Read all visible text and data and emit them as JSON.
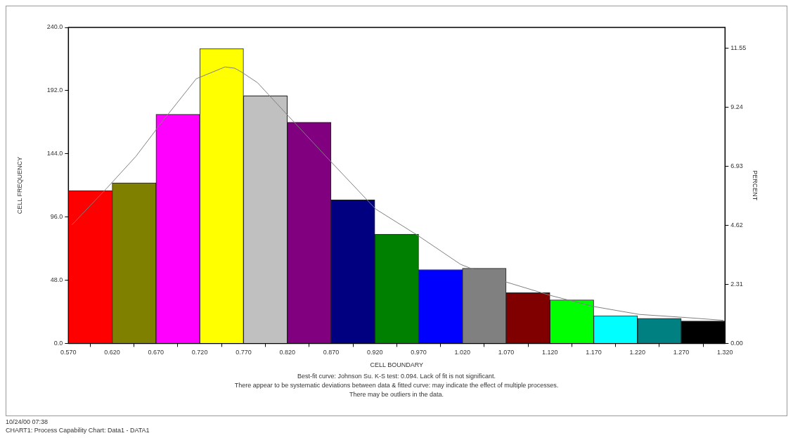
{
  "chart_data": {
    "type": "histogram",
    "xlabel": "CELL BOUNDARY",
    "ylabel": "CELL FREQUENCY",
    "y2label": "PERCENT",
    "bins": [
      0.57,
      0.62,
      0.67,
      0.72,
      0.77,
      0.82,
      0.87,
      0.92,
      0.97,
      1.02,
      1.07,
      1.12,
      1.17,
      1.22,
      1.27,
      1.32
    ],
    "values": [
      116,
      122,
      174,
      224,
      188,
      168,
      109,
      83,
      56,
      57,
      38.5,
      33,
      21,
      19,
      17
    ],
    "colors": [
      "#ff0000",
      "#808000",
      "#ff00ff",
      "#ffff00",
      "#c0c0c0",
      "#800080",
      "#000080",
      "#008000",
      "#0000ff",
      "#808080",
      "#800000",
      "#00ff00",
      "#00ffff",
      "#008080",
      "#000000"
    ],
    "series": [
      {
        "type": "line",
        "color": "#808080",
        "marker": "none",
        "x": [
          0.574,
          0.614,
          0.647,
          0.679,
          0.716,
          0.749,
          0.76,
          0.768,
          0.786,
          0.818,
          0.867,
          0.921,
          0.969,
          1.018,
          1.068,
          1.12,
          1.17,
          1.222,
          1.278,
          1.318
        ],
        "values": [
          90,
          118,
          142,
          170,
          201,
          210,
          209,
          206,
          198,
          175,
          140,
          102,
          82,
          60,
          47,
          36.5,
          28,
          22,
          19.5,
          17.5
        ]
      }
    ],
    "xlim": [
      0.57,
      1.32
    ],
    "xticks": [
      {
        "value": 0.57,
        "label": "0.570"
      },
      {
        "value": 0.62,
        "label": "0.620"
      },
      {
        "value": 0.67,
        "label": "0.670"
      },
      {
        "value": 0.72,
        "label": "0.720"
      },
      {
        "value": 0.77,
        "label": "0.770"
      },
      {
        "value": 0.82,
        "label": "0.820"
      },
      {
        "value": 0.87,
        "label": "0.870"
      },
      {
        "value": 0.92,
        "label": "0.920"
      },
      {
        "value": 0.97,
        "label": "0.970"
      },
      {
        "value": 1.02,
        "label": "1.020"
      },
      {
        "value": 1.07,
        "label": "1.070"
      },
      {
        "value": 1.12,
        "label": "1.120"
      },
      {
        "value": 1.17,
        "label": "1.170"
      },
      {
        "value": 1.22,
        "label": "1.220"
      },
      {
        "value": 1.27,
        "label": "1.270"
      },
      {
        "value": 1.32,
        "label": "1.320"
      }
    ],
    "ylim": [
      0,
      240
    ],
    "yticks": [
      {
        "value": 0,
        "label": "0.0"
      },
      {
        "value": 48,
        "label": "48.0"
      },
      {
        "value": 96,
        "label": "96.0"
      },
      {
        "value": 144,
        "label": "144.0"
      },
      {
        "value": 192,
        "label": "192.0"
      },
      {
        "value": 240,
        "label": "240.0"
      }
    ],
    "y2lim": [
      0,
      12.35
    ],
    "y2ticks": [
      {
        "value": 0,
        "label": "0.00"
      },
      2.31,
      4.62,
      6.93,
      9.24,
      11.55
    ],
    "grid": false,
    "legend": false,
    "annotations": [
      "Best-fit curve: Johnson Su. K-S test: 0.094. Lack of fit is not significant.",
      "There appear to be systematic deviations between data & fitted curve: may indicate the effect of multiple processes.",
      "There may be outliers in the data.",
      "10/24/00 07:38",
      "CHART1: Process Capability Chart: Data1 - DATA1"
    ]
  }
}
